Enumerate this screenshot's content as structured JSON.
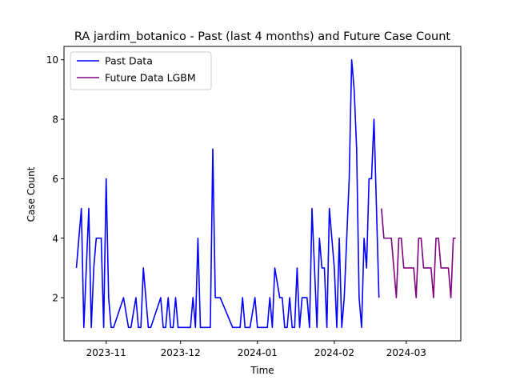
{
  "chart_data": {
    "type": "line",
    "title": "RA jardim_botanico - Past (last 4 months) and Future Case Count",
    "xlabel": "Time",
    "ylabel": "Case Count",
    "xlim": [
      "2023-10-15",
      "2024-03-23"
    ],
    "ylim": [
      0.55,
      10.45
    ],
    "x_ticks": [
      "2023-11",
      "2023-12",
      "2024-01",
      "2024-02",
      "2024-03"
    ],
    "y_ticks": [
      2,
      4,
      6,
      8,
      10
    ],
    "legend_position": "upper-left",
    "grid": false,
    "series": [
      {
        "name": "Past Data",
        "color": "#0000ff",
        "points": [
          [
            "2023-10-20",
            3
          ],
          [
            "2023-10-22",
            5
          ],
          [
            "2023-10-23",
            1
          ],
          [
            "2023-10-25",
            5
          ],
          [
            "2023-10-26",
            1
          ],
          [
            "2023-10-27",
            3
          ],
          [
            "2023-10-28",
            4
          ],
          [
            "2023-10-30",
            4
          ],
          [
            "2023-10-31",
            1
          ],
          [
            "2023-11-01",
            6
          ],
          [
            "2023-11-02",
            2
          ],
          [
            "2023-11-03",
            1
          ],
          [
            "2023-11-04",
            1
          ],
          [
            "2023-11-08",
            2
          ],
          [
            "2023-11-10",
            1
          ],
          [
            "2023-11-11",
            1
          ],
          [
            "2023-11-13",
            2
          ],
          [
            "2023-11-14",
            1
          ],
          [
            "2023-11-15",
            1
          ],
          [
            "2023-11-16",
            3
          ],
          [
            "2023-11-18",
            1
          ],
          [
            "2023-11-19",
            1
          ],
          [
            "2023-11-23",
            2
          ],
          [
            "2023-11-24",
            1
          ],
          [
            "2023-11-25",
            1
          ],
          [
            "2023-11-26",
            2
          ],
          [
            "2023-11-27",
            1
          ],
          [
            "2023-11-28",
            1
          ],
          [
            "2023-11-29",
            2
          ],
          [
            "2023-11-30",
            1
          ],
          [
            "2023-12-05",
            1
          ],
          [
            "2023-12-06",
            2
          ],
          [
            "2023-12-07",
            1
          ],
          [
            "2023-12-08",
            4
          ],
          [
            "2023-12-09",
            1
          ],
          [
            "2023-12-13",
            1
          ],
          [
            "2023-12-14",
            7
          ],
          [
            "2023-12-15",
            2
          ],
          [
            "2023-12-17",
            2
          ],
          [
            "2023-12-22",
            1
          ],
          [
            "2023-12-25",
            1
          ],
          [
            "2023-12-26",
            2
          ],
          [
            "2023-12-27",
            1
          ],
          [
            "2023-12-29",
            1
          ],
          [
            "2023-12-31",
            2
          ],
          [
            "2024-01-01",
            1
          ],
          [
            "2024-01-05",
            1
          ],
          [
            "2024-01-06",
            2
          ],
          [
            "2024-01-07",
            1
          ],
          [
            "2024-01-08",
            3
          ],
          [
            "2024-01-10",
            2
          ],
          [
            "2024-01-11",
            2
          ],
          [
            "2024-01-12",
            1
          ],
          [
            "2024-01-13",
            1
          ],
          [
            "2024-01-14",
            2
          ],
          [
            "2024-01-15",
            1
          ],
          [
            "2024-01-16",
            1
          ],
          [
            "2024-01-17",
            3
          ],
          [
            "2024-01-18",
            1
          ],
          [
            "2024-01-19",
            2
          ],
          [
            "2024-01-21",
            2
          ],
          [
            "2024-01-22",
            1
          ],
          [
            "2024-01-23",
            5
          ],
          [
            "2024-01-25",
            1
          ],
          [
            "2024-01-26",
            4
          ],
          [
            "2024-01-27",
            3
          ],
          [
            "2024-01-28",
            3
          ],
          [
            "2024-01-29",
            1
          ],
          [
            "2024-01-30",
            5
          ],
          [
            "2024-02-01",
            3
          ],
          [
            "2024-02-02",
            1
          ],
          [
            "2024-02-03",
            4
          ],
          [
            "2024-02-04",
            1
          ],
          [
            "2024-02-05",
            2
          ],
          [
            "2024-02-07",
            6
          ],
          [
            "2024-02-08",
            10
          ],
          [
            "2024-02-09",
            9
          ],
          [
            "2024-02-10",
            7
          ],
          [
            "2024-02-11",
            2
          ],
          [
            "2024-02-12",
            1
          ],
          [
            "2024-02-13",
            4
          ],
          [
            "2024-02-14",
            3
          ],
          [
            "2024-02-15",
            6
          ],
          [
            "2024-02-16",
            6
          ],
          [
            "2024-02-17",
            8
          ],
          [
            "2024-02-18",
            5
          ],
          [
            "2024-02-19",
            2
          ]
        ]
      },
      {
        "name": "Future Data LGBM",
        "color": "#800080",
        "points": [
          [
            "2024-02-20",
            5
          ],
          [
            "2024-02-21",
            4
          ],
          [
            "2024-02-22",
            4
          ],
          [
            "2024-02-23",
            4
          ],
          [
            "2024-02-24",
            4
          ],
          [
            "2024-02-25",
            3
          ],
          [
            "2024-02-26",
            2
          ],
          [
            "2024-02-27",
            4
          ],
          [
            "2024-02-28",
            4
          ],
          [
            "2024-02-29",
            3
          ],
          [
            "2024-03-01",
            3
          ],
          [
            "2024-03-02",
            3
          ],
          [
            "2024-03-03",
            3
          ],
          [
            "2024-03-04",
            3
          ],
          [
            "2024-03-05",
            2
          ],
          [
            "2024-03-06",
            4
          ],
          [
            "2024-03-07",
            4
          ],
          [
            "2024-03-08",
            3
          ],
          [
            "2024-03-09",
            3
          ],
          [
            "2024-03-10",
            3
          ],
          [
            "2024-03-11",
            3
          ],
          [
            "2024-03-12",
            2
          ],
          [
            "2024-03-13",
            4
          ],
          [
            "2024-03-14",
            4
          ],
          [
            "2024-03-15",
            3
          ],
          [
            "2024-03-16",
            3
          ],
          [
            "2024-03-17",
            3
          ],
          [
            "2024-03-18",
            3
          ],
          [
            "2024-03-19",
            2
          ],
          [
            "2024-03-20",
            4
          ],
          [
            "2024-03-21",
            4
          ]
        ]
      }
    ]
  }
}
